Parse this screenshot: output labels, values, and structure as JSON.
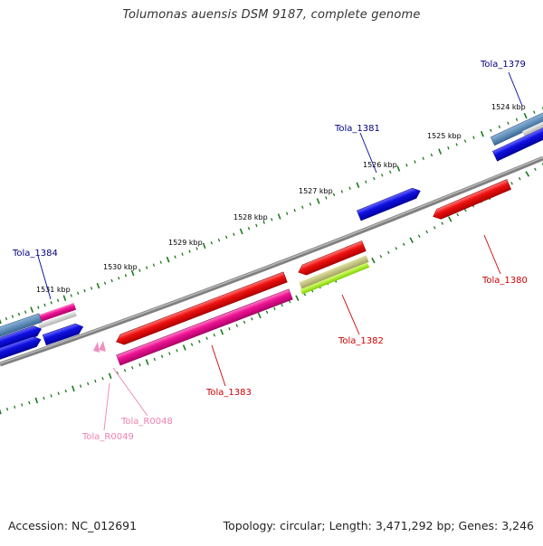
{
  "title": "Tolumonas auensis DSM 9187, complete genome",
  "footer": {
    "accession": "Accession: NC_012691",
    "summary": "Topology: circular; Length: 3,471,292 bp; Genes: 3,246"
  },
  "scale_labels": [
    "1531 kbp",
    "1530 kbp",
    "1529 kbp",
    "1528 kbp",
    "1527 kbp",
    "1526 kbp",
    "1525 kbp",
    "1524 kbp"
  ],
  "gene_labels": {
    "tola_1379": "Tola_1379",
    "tola_1381": "Tola_1381",
    "tola_1384": "Tola_1384",
    "tola_1380": "Tola_1380",
    "tola_1382": "Tola_1382",
    "tola_1383": "Tola_1383",
    "tola_r0048": "Tola_R0048",
    "tola_r0049": "Tola_R0049"
  },
  "colors": {
    "forward_cds": "#1010e0",
    "reverse_cds": "#ee1111",
    "rna": "#ee1493",
    "trna": "#f090c0",
    "pseudo": "#b0b070",
    "misc": "#99e020",
    "other": "#4a80b0",
    "backbone": "#808080",
    "tick": "#1a7a1a",
    "label_forward": "#000080",
    "label_reverse": "#cc0000",
    "label_rna": "#f080b0"
  }
}
